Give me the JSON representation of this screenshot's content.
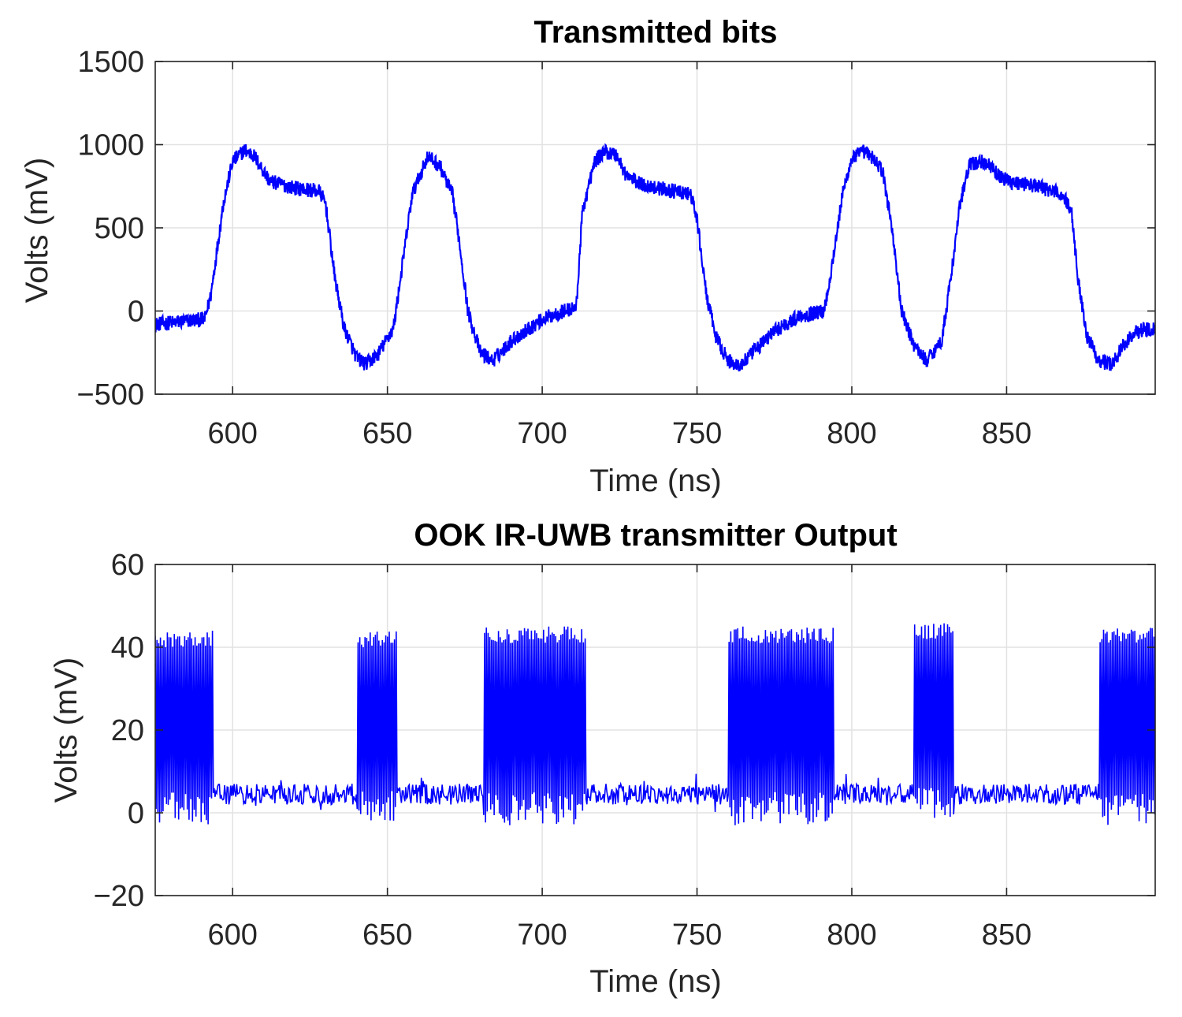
{
  "chart_data": [
    {
      "type": "line",
      "title": "Transmitted bits",
      "xlabel": "Time (ns)",
      "ylabel": "Volts (mV)",
      "xlim": [
        575,
        898
      ],
      "ylim": [
        -500,
        1500
      ],
      "xticks": [
        600,
        650,
        700,
        750,
        800,
        850
      ],
      "yticks": [
        -500,
        0,
        500,
        1000,
        1500
      ],
      "xtick_labels": [
        "600",
        "650",
        "700",
        "750",
        "800",
        "850"
      ],
      "ytick_labels": [
        "−500",
        "0",
        "500",
        "1000",
        "1500"
      ],
      "grid": true,
      "color": "#0000ff",
      "series": [
        {
          "x": [
            575,
            585,
            591,
            593,
            597,
            600,
            604,
            607,
            612,
            620,
            628,
            630,
            633,
            636,
            640,
            643,
            647,
            652,
            655,
            658,
            663,
            667,
            671,
            673,
            676,
            680,
            684,
            690,
            700,
            707,
            711,
            713,
            717,
            720,
            724,
            727,
            732,
            740,
            748,
            750,
            753,
            756,
            760,
            764,
            768,
            775,
            783,
            791,
            793,
            797,
            800,
            804,
            808,
            810,
            813,
            816,
            820,
            824,
            829,
            832,
            835,
            838,
            843,
            847,
            851,
            860,
            868,
            871,
            873,
            876,
            880,
            884,
            888,
            892,
            898
          ],
          "y": [
            -80,
            -60,
            -50,
            100,
            650,
            900,
            970,
            930,
            780,
            740,
            720,
            650,
            200,
            -100,
            -280,
            -320,
            -260,
            -100,
            300,
            700,
            930,
            870,
            700,
            450,
            0,
            -250,
            -300,
            -180,
            -50,
            0,
            20,
            600,
            900,
            960,
            940,
            820,
            760,
            730,
            700,
            550,
            100,
            -150,
            -300,
            -330,
            -250,
            -120,
            -30,
            0,
            200,
            700,
            920,
            960,
            900,
            830,
            500,
            0,
            -200,
            -300,
            -180,
            200,
            650,
            880,
            900,
            820,
            780,
            750,
            700,
            600,
            200,
            -150,
            -300,
            -320,
            -200,
            -120,
            -100
          ]
        }
      ]
    },
    {
      "type": "line",
      "title": "OOK IR-UWB transmitter Output",
      "xlabel": "Time (ns)",
      "ylabel": "Volts (mV)",
      "xlim": [
        575,
        898
      ],
      "ylim": [
        -20,
        60
      ],
      "xticks": [
        600,
        650,
        700,
        750,
        800,
        850
      ],
      "yticks": [
        -20,
        0,
        20,
        40,
        60
      ],
      "xtick_labels": [
        "600",
        "650",
        "700",
        "750",
        "800",
        "850"
      ],
      "ytick_labels": [
        "−20",
        "0",
        "20",
        "40",
        "60"
      ],
      "grid": true,
      "color": "#0000ff",
      "baseline_range": [
        2,
        7
      ],
      "bursts": [
        {
          "start": 575,
          "end": 594,
          "peak": 43,
          "trough": -3
        },
        {
          "start": 640,
          "end": 653,
          "peak": 43,
          "trough": -2
        },
        {
          "start": 681,
          "end": 714,
          "peak": 44,
          "trough": -3
        },
        {
          "start": 760,
          "end": 794,
          "peak": 44,
          "trough": -3
        },
        {
          "start": 820,
          "end": 833,
          "peak": 45,
          "trough": -2
        },
        {
          "start": 880,
          "end": 898,
          "peak": 44,
          "trough": -3
        }
      ]
    }
  ]
}
